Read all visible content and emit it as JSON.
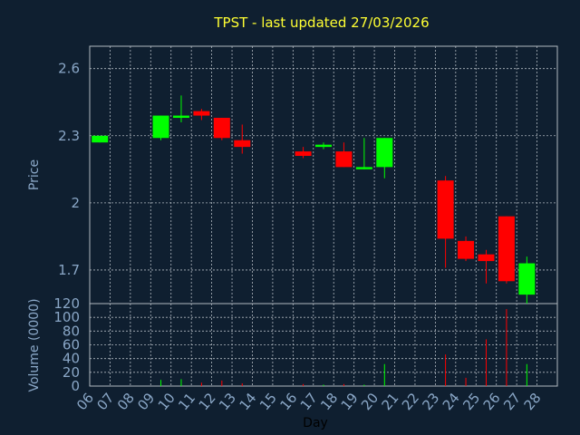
{
  "chart_data": [
    {
      "type": "candlestick",
      "title": "TPST - last updated 27/03/2026",
      "ylabel": "Price",
      "ylim": [
        1.55,
        2.7
      ],
      "yticks": [
        "1.7",
        "2",
        "2.3",
        "2.6"
      ],
      "grid": true,
      "candles": [
        {
          "day": "06",
          "open": 2.27,
          "high": 2.3,
          "low": 2.27,
          "close": 2.3
        },
        {
          "day": "09",
          "open": 2.29,
          "high": 2.39,
          "low": 2.28,
          "close": 2.39
        },
        {
          "day": "10",
          "open": 2.38,
          "high": 2.48,
          "low": 2.36,
          "close": 2.39
        },
        {
          "day": "11",
          "open": 2.41,
          "high": 2.42,
          "low": 2.37,
          "close": 2.39
        },
        {
          "day": "12",
          "open": 2.38,
          "high": 2.38,
          "low": 2.28,
          "close": 2.29
        },
        {
          "day": "13",
          "open": 2.28,
          "high": 2.35,
          "low": 2.22,
          "close": 2.25
        },
        {
          "day": "16",
          "open": 2.23,
          "high": 2.25,
          "low": 2.2,
          "close": 2.21
        },
        {
          "day": "17",
          "open": 2.25,
          "high": 2.27,
          "low": 2.24,
          "close": 2.26
        },
        {
          "day": "18",
          "open": 2.23,
          "high": 2.27,
          "low": 2.16,
          "close": 2.16
        },
        {
          "day": "19",
          "open": 2.15,
          "high": 2.29,
          "low": 2.15,
          "close": 2.16
        },
        {
          "day": "20",
          "open": 2.16,
          "high": 2.29,
          "low": 2.11,
          "close": 2.29
        },
        {
          "day": "23",
          "open": 2.1,
          "high": 2.12,
          "low": 1.71,
          "close": 1.84
        },
        {
          "day": "24",
          "open": 1.83,
          "high": 1.85,
          "low": 1.74,
          "close": 1.75
        },
        {
          "day": "25",
          "open": 1.77,
          "high": 1.79,
          "low": 1.64,
          "close": 1.74
        },
        {
          "day": "26",
          "open": 1.94,
          "high": 1.94,
          "low": 1.64,
          "close": 1.65
        },
        {
          "day": "27",
          "open": 1.59,
          "high": 1.76,
          "low": 1.55,
          "close": 1.73
        }
      ]
    },
    {
      "type": "bar",
      "ylabel": "Volume (0000)",
      "xlabel": "Day",
      "ylim": [
        0,
        120
      ],
      "yticks": [
        "0",
        "20",
        "40",
        "60",
        "80",
        "100",
        "120"
      ],
      "grid": true,
      "categories": [
        "06",
        "07",
        "08",
        "09",
        "10",
        "11",
        "12",
        "13",
        "14",
        "15",
        "16",
        "17",
        "18",
        "19",
        "20",
        "21",
        "22",
        "23",
        "24",
        "25",
        "26",
        "27",
        "28"
      ],
      "volumes": [
        {
          "day": "09",
          "value": 9,
          "direction": "up"
        },
        {
          "day": "10",
          "value": 10,
          "direction": "up"
        },
        {
          "day": "11",
          "value": 5,
          "direction": "down"
        },
        {
          "day": "12",
          "value": 8,
          "direction": "down"
        },
        {
          "day": "13",
          "value": 4,
          "direction": "down"
        },
        {
          "day": "16",
          "value": 3,
          "direction": "down"
        },
        {
          "day": "17",
          "value": 2,
          "direction": "up"
        },
        {
          "day": "18",
          "value": 3,
          "direction": "down"
        },
        {
          "day": "19",
          "value": 2,
          "direction": "up"
        },
        {
          "day": "20",
          "value": 32,
          "direction": "up"
        },
        {
          "day": "23",
          "value": 46,
          "direction": "down"
        },
        {
          "day": "24",
          "value": 12,
          "direction": "down"
        },
        {
          "day": "25",
          "value": 68,
          "direction": "down"
        },
        {
          "day": "26",
          "value": 112,
          "direction": "down"
        },
        {
          "day": "27",
          "value": 32,
          "direction": "up"
        }
      ]
    }
  ],
  "colors": {
    "background": "#0f1f30",
    "up": "#00ff00",
    "down": "#ff0000",
    "grid": "#b0b8c0",
    "axis_text": "#8aa7c7",
    "title": "#ffff33"
  }
}
